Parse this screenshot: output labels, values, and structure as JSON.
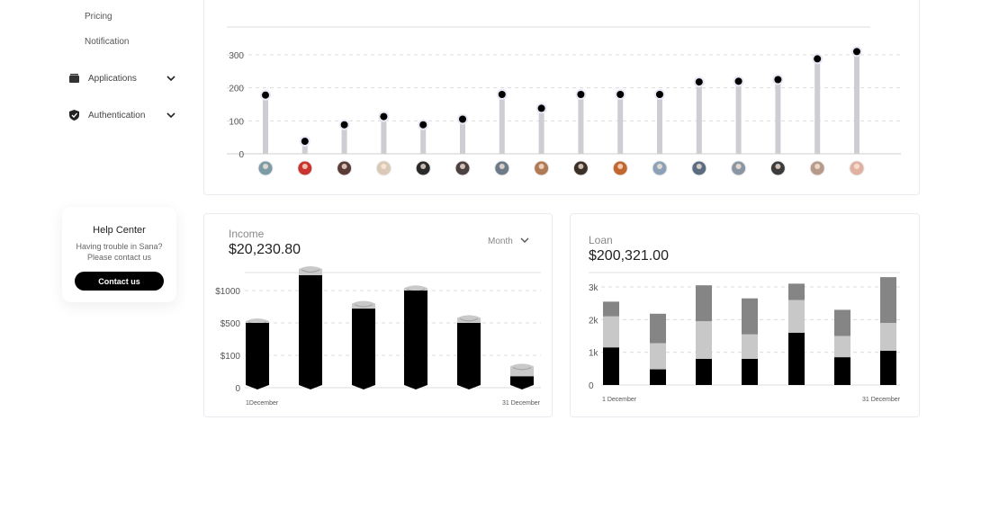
{
  "sidebar": {
    "sub_items": [
      "Pricing",
      "Notification"
    ],
    "items": [
      {
        "label": "Applications",
        "icon": "folder-icon"
      },
      {
        "label": "Authentication",
        "icon": "shield-icon"
      }
    ]
  },
  "help_center": {
    "title": "Help Center",
    "line1": "Having trouble in Sana?",
    "line2": "Please contact us",
    "button": "Contact us"
  },
  "income": {
    "label": "Income",
    "value": "$20,230.80",
    "period": "Month"
  },
  "loan": {
    "label": "Loan",
    "value": "$200,321.00"
  },
  "avatar_colors": [
    "#7d9ba6",
    "#c8342f",
    "#5b3b36",
    "#d9c9b5",
    "#2a2a2a",
    "#4d4040",
    "#6c7a8a",
    "#b07a55",
    "#3a3028",
    "#c0662e",
    "#8ca0b8",
    "#5a6c80",
    "#8a96a4",
    "#3b3b3b",
    "#b89a8a",
    "#e0b0a0"
  ],
  "chart_data": [
    {
      "type": "scatter",
      "y_ticks": [
        "0",
        "100",
        "200",
        "300"
      ],
      "ylim": [
        0,
        300
      ],
      "values": [
        178,
        38,
        88,
        113,
        88,
        105,
        180,
        138,
        180,
        180,
        180,
        218,
        220,
        225,
        288,
        310
      ],
      "grid": true
    },
    {
      "type": "bar",
      "y_ticks": [
        "0",
        "$100",
        "$500",
        "$1000"
      ],
      "x_labels": [
        "1December",
        "31 December"
      ],
      "series": [
        {
          "values": [
            500,
            1300,
            720,
            1000,
            500,
            35
          ]
        },
        {
          "values": [
            40,
            120,
            120,
            80,
            120,
            80
          ]
        }
      ],
      "grid": true
    },
    {
      "type": "bar",
      "y_ticks": [
        "0",
        "1k",
        "2k",
        "3k"
      ],
      "x_labels": [
        "1 December",
        "31 December"
      ],
      "ylim": [
        0,
        3000
      ],
      "series": [
        {
          "values": [
            1150,
            480,
            800,
            800,
            1600,
            850,
            1050
          ]
        },
        {
          "values": [
            950,
            800,
            1150,
            750,
            1000,
            650,
            850
          ]
        },
        {
          "values": [
            450,
            900,
            1100,
            1100,
            500,
            800,
            1400
          ]
        }
      ],
      "colors": [
        "#000000",
        "#c8c8c8",
        "#858585"
      ],
      "grid": true
    }
  ]
}
